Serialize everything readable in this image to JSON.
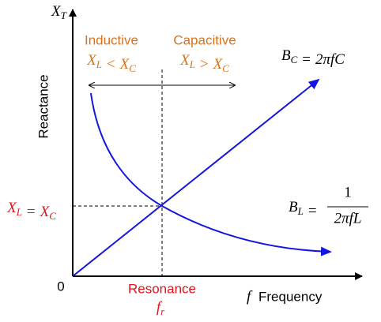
{
  "y_axis": {
    "symbol": {
      "t": "X",
      "sub": "T"
    },
    "title": "Reactance"
  },
  "origin": "0",
  "x_axis": {
    "symbol": "f",
    "title": "Frequency"
  },
  "regions": [
    {
      "title": "Inductive",
      "condition": [
        {
          "t": "X",
          "sub": "L"
        },
        {
          "t": "<"
        },
        {
          "t": "X",
          "sub": "C"
        }
      ]
    },
    {
      "title": "Capacitive",
      "condition": [
        {
          "t": "X",
          "sub": "L"
        },
        {
          "t": ">"
        },
        {
          "t": "X",
          "sub": "C"
        }
      ]
    }
  ],
  "capacitive_curve": {
    "lhs": [
      {
        "t": "B",
        "sub": "C"
      },
      {
        "t": "="
      },
      {
        "t": "2πfC"
      }
    ]
  },
  "inductive_curve": {
    "lhs": [
      {
        "t": "B",
        "sub": "L"
      },
      {
        "t": "="
      }
    ],
    "numerator": "1",
    "denominator": "2πfL"
  },
  "crossing": [
    {
      "t": "X",
      "sub": "L"
    },
    {
      "t": "="
    },
    {
      "t": "X",
      "sub": "C"
    }
  ],
  "resonance": {
    "title": "Resonance",
    "symbol": {
      "t": "f",
      "sub": "r"
    }
  }
}
